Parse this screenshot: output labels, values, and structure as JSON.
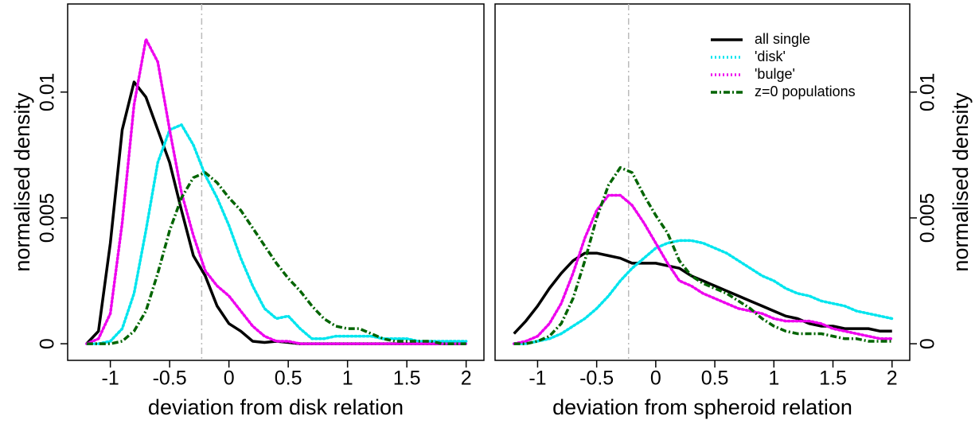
{
  "chart_data": [
    {
      "type": "line",
      "xlabel": "deviation from disk relation",
      "ylabel": "normalised density",
      "yaxis_side": "left",
      "xlim": [
        -1.36,
        2.15
      ],
      "ylim": [
        -0.00066,
        0.0135
      ],
      "xticks": [
        -1,
        -0.5,
        0,
        0.5,
        1,
        1.5,
        2
      ],
      "yticks": [
        0,
        0.005,
        0.01
      ],
      "vline": -0.23,
      "legend": false,
      "x": [
        -1.2,
        -1.1,
        -1.0,
        -0.9,
        -0.8,
        -0.7,
        -0.6,
        -0.5,
        -0.4,
        -0.3,
        -0.2,
        -0.1,
        0,
        0.1,
        0.2,
        0.3,
        0.4,
        0.5,
        0.6,
        0.7,
        0.8,
        0.9,
        1.0,
        1.1,
        1.2,
        1.3,
        1.4,
        1.5,
        1.6,
        1.7,
        1.8,
        1.9,
        2.0
      ],
      "series": [
        {
          "name": "all single",
          "color": "#000000",
          "linestyle": "solid",
          "values": [
            0,
            0.0005,
            0.004,
            0.0085,
            0.0104,
            0.0098,
            0.0085,
            0.0072,
            0.0053,
            0.0035,
            0.0027,
            0.0015,
            0.0008,
            0.0005,
            0.0001,
            5e-05,
            0.0001,
            5e-05,
            0,
            0,
            0,
            0,
            0,
            0,
            0,
            0,
            0,
            0,
            0,
            0,
            0,
            0,
            0
          ]
        },
        {
          "name": "'disk'",
          "color": "#00e5ee",
          "linestyle": "dotted",
          "values": [
            0,
            0,
            0.0001,
            0.0006,
            0.002,
            0.0045,
            0.0072,
            0.0085,
            0.0087,
            0.0079,
            0.0067,
            0.0058,
            0.0047,
            0.0034,
            0.0023,
            0.0014,
            0.001,
            0.0011,
            0.0006,
            0.0002,
            0.0002,
            0.0003,
            0.0003,
            0.0003,
            0.0003,
            0.0002,
            0.0002,
            0.0002,
            0.0001,
            0.0001,
            0.0001,
            0.0001,
            0.0001
          ]
        },
        {
          "name": "'bulge'",
          "color": "#ee00ee",
          "linestyle": "dotted",
          "values": [
            0,
            0.0002,
            0.0012,
            0.0048,
            0.0095,
            0.0121,
            0.0112,
            0.0085,
            0.006,
            0.0043,
            0.0029,
            0.0023,
            0.0019,
            0.0013,
            0.0007,
            0.0003,
            0.0001,
            0.0001,
            0,
            0,
            0,
            0,
            0,
            0,
            0,
            0,
            0,
            0,
            0,
            0,
            0,
            0,
            0
          ]
        },
        {
          "name": "z=0 populations",
          "color": "#006400",
          "linestyle": "dashdot",
          "values": [
            0,
            0,
            0,
            0.0001,
            0.0005,
            0.0013,
            0.0028,
            0.0045,
            0.0058,
            0.0066,
            0.0068,
            0.0064,
            0.0058,
            0.0053,
            0.0046,
            0.0039,
            0.0032,
            0.0026,
            0.0021,
            0.0015,
            0.001,
            0.0007,
            0.0006,
            0.0006,
            0.0004,
            0.0002,
            0.0001,
            0.0001,
            0.0001,
            0.0001,
            0,
            0,
            0
          ]
        }
      ]
    },
    {
      "type": "line",
      "xlabel": "deviation from spheroid relation",
      "ylabel": "normalised density",
      "yaxis_side": "right",
      "xlim": [
        -1.36,
        2.15
      ],
      "ylim": [
        -0.00066,
        0.0135
      ],
      "xticks": [
        -1,
        -0.5,
        0,
        0.5,
        1,
        1.5,
        2
      ],
      "yticks": [
        0,
        0.005,
        0.01
      ],
      "vline": -0.23,
      "legend": "top right",
      "x": [
        -1.2,
        -1.1,
        -1.0,
        -0.9,
        -0.8,
        -0.7,
        -0.6,
        -0.5,
        -0.4,
        -0.3,
        -0.2,
        -0.1,
        0,
        0.1,
        0.2,
        0.3,
        0.4,
        0.5,
        0.6,
        0.7,
        0.8,
        0.9,
        1.0,
        1.1,
        1.2,
        1.3,
        1.4,
        1.5,
        1.6,
        1.7,
        1.8,
        1.9,
        2.0
      ],
      "series": [
        {
          "name": "all single",
          "color": "#000000",
          "linestyle": "solid",
          "values": [
            0.0004,
            0.0009,
            0.0015,
            0.0022,
            0.0028,
            0.0033,
            0.0036,
            0.0036,
            0.0035,
            0.0034,
            0.0032,
            0.0032,
            0.0032,
            0.0031,
            0.003,
            0.0027,
            0.0025,
            0.0023,
            0.0021,
            0.0019,
            0.0017,
            0.0015,
            0.0013,
            0.0011,
            0.001,
            0.0008,
            0.0007,
            0.0007,
            0.0006,
            0.0006,
            0.0006,
            0.0005,
            0.0005
          ]
        },
        {
          "name": "'disk'",
          "color": "#00e5ee",
          "linestyle": "dotted",
          "values": [
            0,
            0,
            0.0001,
            0.0002,
            0.0004,
            0.0007,
            0.001,
            0.0014,
            0.0019,
            0.0025,
            0.003,
            0.0034,
            0.0038,
            0.004,
            0.0041,
            0.0041,
            0.004,
            0.0038,
            0.0036,
            0.0033,
            0.003,
            0.0027,
            0.0025,
            0.0022,
            0.002,
            0.0019,
            0.0017,
            0.0016,
            0.0015,
            0.0013,
            0.0012,
            0.0011,
            0.001
          ]
        },
        {
          "name": "'bulge'",
          "color": "#ee00ee",
          "linestyle": "dotted",
          "values": [
            0,
            0.0001,
            0.0003,
            0.0008,
            0.0016,
            0.0028,
            0.0042,
            0.0053,
            0.0059,
            0.0059,
            0.0055,
            0.0048,
            0.004,
            0.0032,
            0.0025,
            0.0023,
            0.002,
            0.0018,
            0.0016,
            0.0014,
            0.0013,
            0.0012,
            0.001,
            0.0009,
            0.0009,
            0.0009,
            0.0008,
            0.0006,
            0.0005,
            0.0004,
            0.0003,
            0.0002,
            0.0002
          ]
        },
        {
          "name": "z=0 populations",
          "color": "#006400",
          "linestyle": "dashdot",
          "values": [
            0,
            0,
            0.0001,
            0.0003,
            0.0008,
            0.0018,
            0.0033,
            0.005,
            0.0063,
            0.007,
            0.0068,
            0.0059,
            0.0051,
            0.0044,
            0.0033,
            0.0027,
            0.0024,
            0.0022,
            0.002,
            0.0017,
            0.0014,
            0.001,
            0.0007,
            0.0005,
            0.0004,
            0.0004,
            0.0004,
            0.0003,
            0.0002,
            0.0002,
            0.0001,
            0.0001,
            0.0001
          ]
        }
      ]
    }
  ]
}
